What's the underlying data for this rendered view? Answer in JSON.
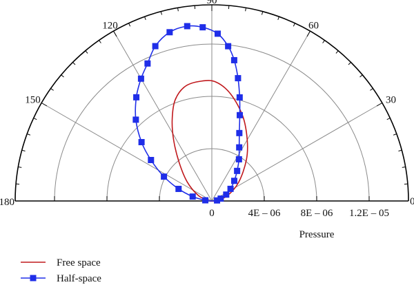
{
  "chart_data": {
    "type": "polar-semicircle",
    "title": "",
    "radial_axis_label": "Pressure",
    "radial_range": [
      0,
      1.5e-05
    ],
    "radial_ticks": [
      {
        "value": 4e-06,
        "label": "4E – 06"
      },
      {
        "value": 8e-06,
        "label": "8E – 06"
      },
      {
        "value": 1.2e-05,
        "label": "1.2E – 05"
      }
    ],
    "center_label": "0",
    "angle_ticks": [
      {
        "angle": 0,
        "label": "0"
      },
      {
        "angle": 30,
        "label": "30"
      },
      {
        "angle": 60,
        "label": "60"
      },
      {
        "angle": 90,
        "label": "90"
      },
      {
        "angle": 120,
        "label": "120"
      },
      {
        "angle": 150,
        "label": "150"
      },
      {
        "angle": 180,
        "label": "180"
      }
    ],
    "legend_position": "bottom-left",
    "colors": {
      "free": "#c0181c",
      "half": "#1f2ee8",
      "grid": "#8a8a8a",
      "axis": "#000000"
    },
    "series": [
      {
        "name": "Free space",
        "line": "solid",
        "markers": false,
        "points": [
          {
            "angle": 2,
            "r": 2e-07
          },
          {
            "angle": 18,
            "r": 1.2e-06
          },
          {
            "angle": 35,
            "r": 2.5e-06
          },
          {
            "angle": 50,
            "r": 4.1e-06
          },
          {
            "angle": 60,
            "r": 5.4e-06
          },
          {
            "angle": 70,
            "r": 6.9e-06
          },
          {
            "angle": 80,
            "r": 8.3e-06
          },
          {
            "angle": 88,
            "r": 9.1e-06
          },
          {
            "angle": 95,
            "r": 9.2e-06
          },
          {
            "angle": 103,
            "r": 9e-06
          },
          {
            "angle": 110,
            "r": 8.2e-06
          },
          {
            "angle": 116,
            "r": 6.9e-06
          },
          {
            "angle": 122,
            "r": 5.5e-06
          },
          {
            "angle": 130,
            "r": 3.9e-06
          },
          {
            "angle": 142,
            "r": 2.4e-06
          },
          {
            "angle": 158,
            "r": 1.1e-06
          },
          {
            "angle": 175,
            "r": 2e-07
          }
        ]
      },
      {
        "name": "Half-space",
        "line": "solid",
        "markers": true,
        "points": [
          {
            "angle": 6,
            "r": 4e-07
          },
          {
            "angle": 15,
            "r": 7e-07
          },
          {
            "angle": 24,
            "r": 1.2e-06
          },
          {
            "angle": 33,
            "r": 1.7e-06
          },
          {
            "angle": 42,
            "r": 2.3e-06
          },
          {
            "angle": 50,
            "r": 3e-06
          },
          {
            "angle": 57,
            "r": 3.8e-06
          },
          {
            "angle": 63,
            "r": 4.6e-06
          },
          {
            "angle": 68,
            "r": 5.6e-06
          },
          {
            "angle": 72,
            "r": 6.9e-06
          },
          {
            "angle": 75,
            "r": 8.2e-06
          },
          {
            "angle": 78,
            "r": 9.6e-06
          },
          {
            "angle": 81,
            "r": 1.09e-05
          },
          {
            "angle": 84,
            "r": 1.19e-05
          },
          {
            "angle": 88,
            "r": 1.28e-05
          },
          {
            "angle": 93,
            "r": 1.33e-05
          },
          {
            "angle": 98,
            "r": 1.35e-05
          },
          {
            "angle": 104,
            "r": 1.33e-05
          },
          {
            "angle": 110,
            "r": 1.26e-05
          },
          {
            "angle": 115,
            "r": 1.16e-05
          },
          {
            "angle": 120,
            "r": 1.08e-05
          },
          {
            "angle": 126,
            "r": 9.8e-06
          },
          {
            "angle": 133,
            "r": 8.5e-06
          },
          {
            "angle": 140,
            "r": 7e-06
          },
          {
            "angle": 146,
            "r": 5.6e-06
          },
          {
            "angle": 153,
            "r": 4.1e-06
          },
          {
            "angle": 160,
            "r": 2.7e-06
          },
          {
            "angle": 167,
            "r": 1.5e-06
          },
          {
            "angle": 174,
            "r": 5e-07
          }
        ]
      }
    ]
  }
}
